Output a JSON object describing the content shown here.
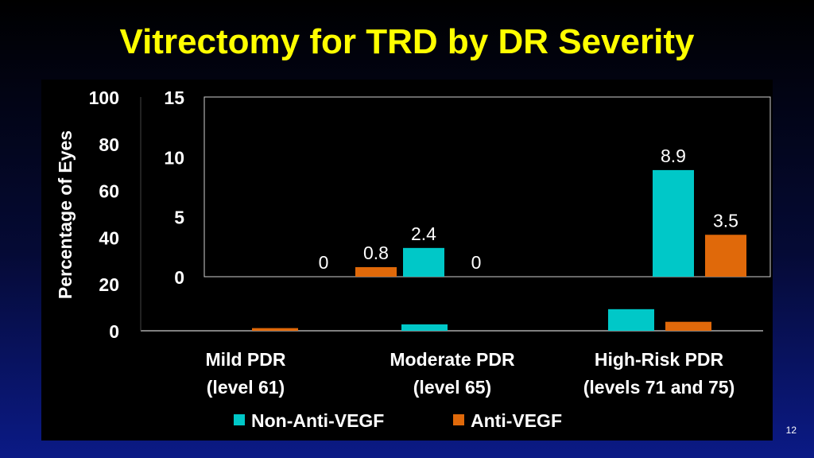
{
  "slide": {
    "title": "Vitrectomy for TRD by DR Severity",
    "page_number": "12"
  },
  "chart_data": {
    "type": "bar",
    "ylabel": "Percentage of Eyes",
    "ylim": [
      0,
      100
    ],
    "yticks": [
      "100",
      "80",
      "60",
      "40",
      "20",
      "0"
    ],
    "inset_ylim": [
      0,
      15
    ],
    "inset_yticks": [
      "15",
      "10",
      "5",
      "0"
    ],
    "categories": [
      {
        "line1": "Mild PDR",
        "line2": "(level 61)"
      },
      {
        "line1": "Moderate PDR",
        "line2": "(level 65)"
      },
      {
        "line1": "High-Risk PDR",
        "line2": "(levels 71 and 75)"
      }
    ],
    "series": [
      {
        "name": "Non-Anti-VEGF",
        "color": "#00c8c8",
        "values": [
          0,
          2.4,
          8.9
        ],
        "labels": [
          "0",
          "2.4",
          "8.9"
        ]
      },
      {
        "name": "Anti-VEGF",
        "color": "#e0690a",
        "values": [
          0.8,
          0,
          3.5
        ],
        "labels": [
          "0.8",
          "0",
          "3.5"
        ]
      }
    ],
    "legend_position": "bottom"
  }
}
